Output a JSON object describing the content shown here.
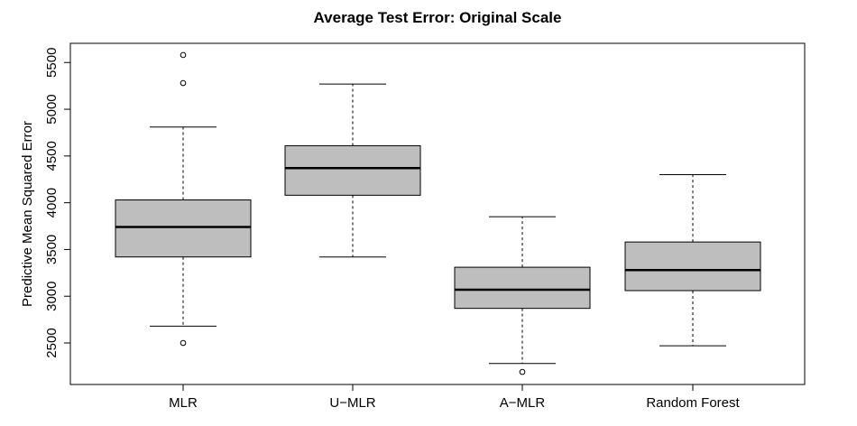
{
  "chart_data": {
    "type": "boxplot",
    "title": "Average Test Error: Original Scale",
    "xlabel": "",
    "ylabel": "Predictive Mean Squared Error",
    "ylim": [
      2200,
      5600
    ],
    "yticks": [
      2500,
      3000,
      3500,
      4000,
      4500,
      5000,
      5500
    ],
    "grid": false,
    "box_fill": "#bebebe",
    "categories": [
      "MLR",
      "U−MLR",
      "A−MLR",
      "Random Forest"
    ],
    "boxes": [
      {
        "name": "MLR",
        "whisker_low": 2680,
        "q1": 3420,
        "median": 3740,
        "q3": 4030,
        "whisker_high": 4810,
        "outliers": [
          2500,
          5280,
          5580
        ]
      },
      {
        "name": "U−MLR",
        "whisker_low": 3420,
        "q1": 4080,
        "median": 4370,
        "q3": 4610,
        "whisker_high": 5270,
        "outliers": []
      },
      {
        "name": "A−MLR",
        "whisker_low": 2280,
        "q1": 2870,
        "median": 3070,
        "q3": 3310,
        "whisker_high": 3850,
        "outliers": [
          2190
        ]
      },
      {
        "name": "Random Forest",
        "whisker_low": 2470,
        "q1": 3060,
        "median": 3280,
        "q3": 3580,
        "whisker_high": 4300,
        "outliers": []
      }
    ]
  }
}
